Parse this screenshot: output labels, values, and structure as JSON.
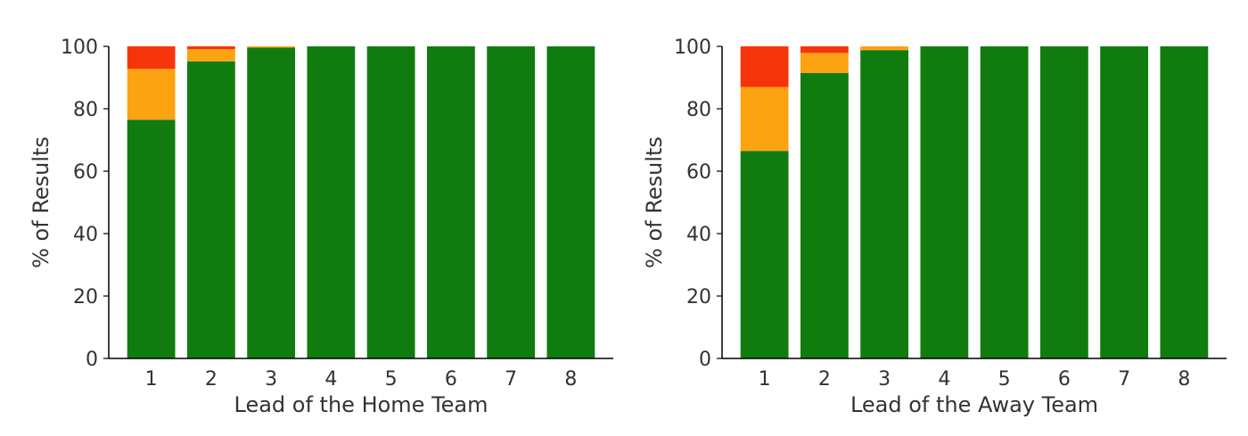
{
  "colors": {
    "win": "#107c10",
    "draw": "#fca311",
    "loss": "#f5340b",
    "text": "#333333"
  },
  "chart_data": [
    {
      "type": "bar",
      "stacked": true,
      "title": "",
      "xlabel": "Lead of the Home Team",
      "ylabel": "% of Results",
      "ylim": [
        0,
        100
      ],
      "yticks": [
        0,
        20,
        40,
        60,
        80,
        100
      ],
      "categories": [
        "1",
        "2",
        "3",
        "4",
        "5",
        "6",
        "7",
        "8"
      ],
      "series": [
        {
          "color": "#107c10",
          "values": [
            76.5,
            95.2,
            99.6,
            100,
            100,
            100,
            100,
            100
          ]
        },
        {
          "color": "#fca311",
          "values": [
            16.3,
            3.9,
            0.4,
            0,
            0,
            0,
            0,
            0
          ]
        },
        {
          "color": "#f5340b",
          "values": [
            7.2,
            0.9,
            0,
            0,
            0,
            0,
            0,
            0
          ]
        }
      ],
      "grid": false,
      "legend": "none"
    },
    {
      "type": "bar",
      "stacked": true,
      "title": "",
      "xlabel": "Lead of the Away Team",
      "ylabel": "% of Results",
      "ylim": [
        0,
        100
      ],
      "yticks": [
        0,
        20,
        40,
        60,
        80,
        100
      ],
      "categories": [
        "1",
        "2",
        "3",
        "4",
        "5",
        "6",
        "7",
        "8"
      ],
      "series": [
        {
          "color": "#107c10",
          "values": [
            66.5,
            91.5,
            98.8,
            100,
            100,
            100,
            100,
            100
          ]
        },
        {
          "color": "#fca311",
          "values": [
            20.5,
            6.4,
            1.2,
            0,
            0,
            0,
            0,
            0
          ]
        },
        {
          "color": "#f5340b",
          "values": [
            13.0,
            2.1,
            0,
            0,
            0,
            0,
            0,
            0
          ]
        }
      ],
      "grid": false,
      "legend": "none"
    }
  ]
}
